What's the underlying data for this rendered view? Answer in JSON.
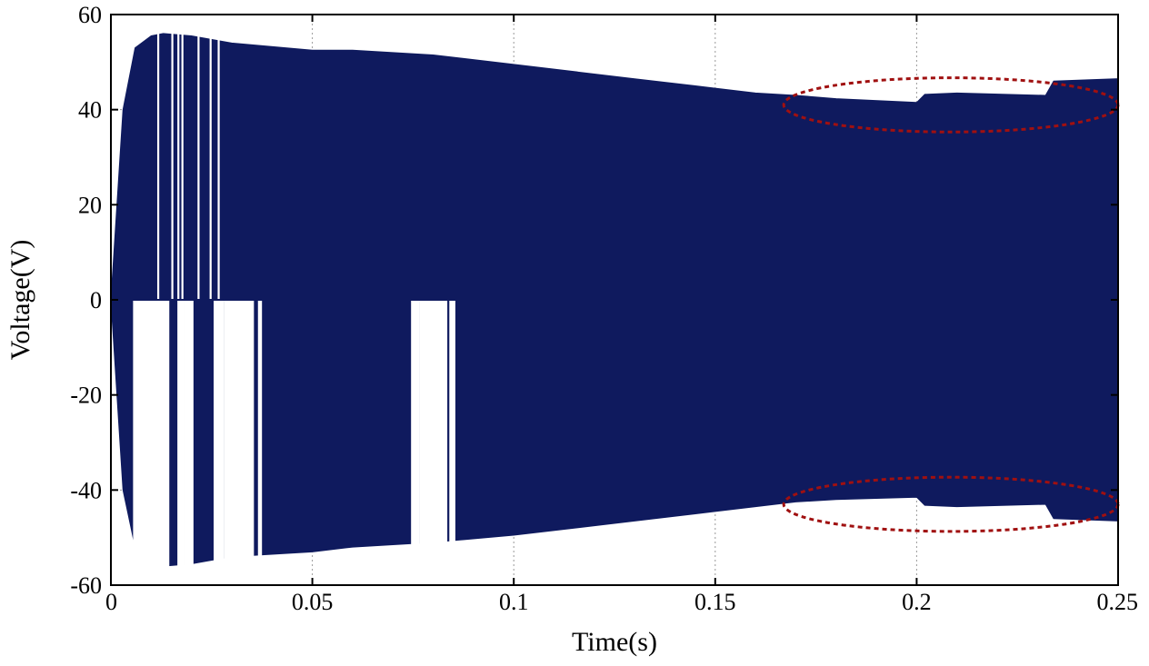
{
  "chart_data": {
    "type": "area",
    "title": "",
    "xlabel": "Time(s)",
    "ylabel": "Voltage(V)",
    "xlim": [
      0,
      0.25
    ],
    "ylim": [
      -60,
      60
    ],
    "x_ticks": [
      0,
      0.05,
      0.1,
      0.15,
      0.2,
      0.25
    ],
    "x_tick_labels": [
      "0",
      "0.05",
      "0.1",
      "0.15",
      "0.2",
      "0.25"
    ],
    "y_ticks": [
      60,
      40,
      20,
      0,
      -20,
      -40,
      -60
    ],
    "y_tick_labels": [
      "60",
      "40",
      "20",
      "0",
      "-20",
      "-40",
      "-60"
    ],
    "grid": "dotted",
    "legend": "none",
    "series_color": "#0f1a5e",
    "annotation_color": "#a01010",
    "envelope": {
      "time": [
        0,
        0.003,
        0.006,
        0.01,
        0.013,
        0.02,
        0.03,
        0.05,
        0.06,
        0.08,
        0.1,
        0.13,
        0.15,
        0.16,
        0.17,
        0.18,
        0.2,
        0.202,
        0.21,
        0.232,
        0.234,
        0.25
      ],
      "upper": [
        0,
        40,
        53,
        55.5,
        56,
        55.5,
        54,
        52.5,
        52.5,
        51.5,
        49.5,
        46.5,
        44.5,
        43.5,
        43,
        42.3,
        41.5,
        43.2,
        43.5,
        43,
        46,
        46.5
      ],
      "lower": [
        0,
        -40,
        -52,
        -55.5,
        -56,
        -55.5,
        -54,
        -53,
        -52,
        -51,
        -49.5,
        -46.5,
        -44.5,
        -43.5,
        -42.5,
        -42,
        -41.5,
        -43.2,
        -43.5,
        -43,
        -46,
        -46.5
      ]
    },
    "gaps": [
      {
        "t_start": 0.0055,
        "t_end": 0.0145,
        "side": "negative"
      },
      {
        "t_start": 0.0165,
        "t_end": 0.0185,
        "side": "negative"
      },
      {
        "t_start": 0.0185,
        "t_end": 0.0205,
        "side": "negative"
      },
      {
        "t_start": 0.0255,
        "t_end": 0.028,
        "side": "negative"
      },
      {
        "t_start": 0.028,
        "t_end": 0.0355,
        "side": "negative"
      },
      {
        "t_start": 0.0365,
        "t_end": 0.0375,
        "side": "negative"
      },
      {
        "t_start": 0.0745,
        "t_end": 0.0765,
        "side": "negative"
      },
      {
        "t_start": 0.0765,
        "t_end": 0.0835,
        "side": "negative"
      },
      {
        "t_start": 0.084,
        "t_end": 0.0855,
        "side": "negative"
      },
      {
        "t_start": 0.0115,
        "t_end": 0.012,
        "side": "positive"
      },
      {
        "t_start": 0.015,
        "t_end": 0.0155,
        "side": "positive"
      },
      {
        "t_start": 0.0165,
        "t_end": 0.017,
        "side": "positive"
      },
      {
        "t_start": 0.0175,
        "t_end": 0.018,
        "side": "positive"
      },
      {
        "t_start": 0.0215,
        "t_end": 0.022,
        "side": "positive"
      },
      {
        "t_start": 0.0245,
        "t_end": 0.025,
        "side": "positive"
      },
      {
        "t_start": 0.0265,
        "t_end": 0.027,
        "side": "positive"
      }
    ],
    "annotations": [
      {
        "type": "dashed-ellipse",
        "t_center": 0.2085,
        "v_center": 41,
        "t_radius": 0.0415,
        "v_radius": 5.7
      },
      {
        "type": "dashed-ellipse",
        "t_center": 0.2085,
        "v_center": -43,
        "t_radius": 0.0415,
        "v_radius": 5.7
      }
    ]
  }
}
